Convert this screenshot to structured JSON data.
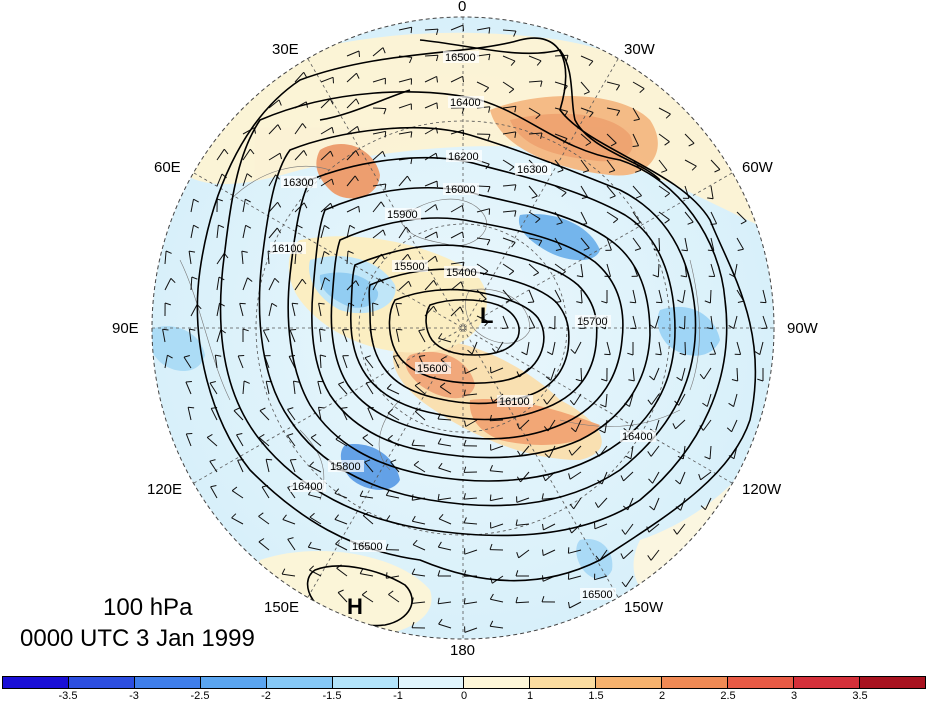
{
  "title": {
    "level": "100 hPa",
    "time": "0000 UTC 3 Jan 1999"
  },
  "longitude_labels": [
    "0",
    "30W",
    "60W",
    "90W",
    "120W",
    "150W",
    "180",
    "150E",
    "120E",
    "90E",
    "60E",
    "30E"
  ],
  "pressure_centers": {
    "low": "L",
    "high": "H"
  },
  "contour_labels": [
    "16500",
    "16400",
    "16300",
    "16200",
    "16100",
    "16000",
    "15900",
    "15800",
    "15700",
    "15600",
    "15500",
    "15400"
  ],
  "colorbar": {
    "ticks": [
      "-3.5",
      "-3",
      "-2.5",
      "-2",
      "-1.5",
      "-1",
      "0",
      "1",
      "1.5",
      "2",
      "2.5",
      "3",
      "3.5"
    ],
    "colors": [
      "#1a0fd6",
      "#2c4ee0",
      "#3f7eea",
      "#5ba5f0",
      "#86c8f6",
      "#b3e4fb",
      "#e0f4fc",
      "#fdf6d8",
      "#fbdca0",
      "#f6b26e",
      "#f08a55",
      "#e85a45",
      "#d4303a",
      "#a8121f"
    ]
  },
  "chart_data": {
    "type": "polar-stereographic map",
    "variable_shading": "anomaly",
    "contour_field": "geopotential height (gpm)",
    "contour_values": [
      15400,
      15500,
      15600,
      15700,
      15800,
      15900,
      16000,
      16100,
      16200,
      16300,
      16400,
      16500
    ],
    "overlay": "wind barbs"
  }
}
